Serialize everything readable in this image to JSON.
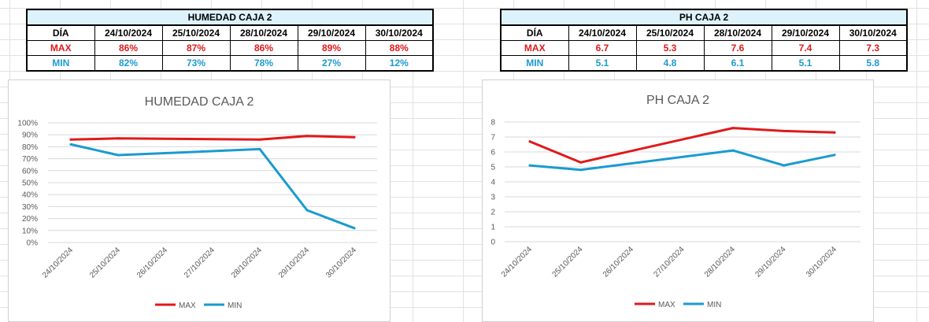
{
  "table1": {
    "title": "HUMEDAD CAJA 2",
    "header_label": "DÍA",
    "dates": [
      "24/10/2024",
      "25/10/2024",
      "28/10/2024",
      "29/10/2024",
      "30/10/2024"
    ],
    "max_label": "MAX",
    "min_label": "MIN",
    "max_values": [
      "86%",
      "87%",
      "86%",
      "89%",
      "88%"
    ],
    "min_values": [
      "82%",
      "73%",
      "78%",
      "27%",
      "12%"
    ]
  },
  "table2": {
    "title": "PH CAJA 2",
    "header_label": "DÍA",
    "dates": [
      "24/10/2024",
      "25/10/2024",
      "28/10/2024",
      "29/10/2024",
      "30/10/2024"
    ],
    "max_label": "MAX",
    "min_label": "MIN",
    "max_values": [
      "6.7",
      "5.3",
      "7.6",
      "7.4",
      "7.3"
    ],
    "min_values": [
      "5.1",
      "4.8",
      "6.1",
      "5.1",
      "5.8"
    ]
  },
  "colors": {
    "max": "#e0191b",
    "min": "#1b9ad0",
    "header_fill": "#ddf2fa"
  },
  "chart_data": [
    {
      "type": "line",
      "title": "HUMEDAD CAJA 2",
      "x_type": "date",
      "x": [
        "2024-10-24",
        "2024-10-25",
        "2024-10-28",
        "2024-10-29",
        "2024-10-30"
      ],
      "x_tick_labels": [
        "24/10/2024",
        "25/10/2024",
        "26/10/2024",
        "27/10/2024",
        "28/10/2024",
        "29/10/2024",
        "30/10/2024"
      ],
      "series": [
        {
          "name": "MAX",
          "values": [
            0.86,
            0.87,
            0.86,
            0.89,
            0.88
          ],
          "color": "#e0191b"
        },
        {
          "name": "MIN",
          "values": [
            0.82,
            0.73,
            0.78,
            0.27,
            0.12
          ],
          "color": "#1b9ad0"
        }
      ],
      "ylim": [
        0,
        1
      ],
      "y_ticks": [
        "0%",
        "10%",
        "20%",
        "30%",
        "40%",
        "50%",
        "60%",
        "70%",
        "80%",
        "90%",
        "100%"
      ],
      "grid": true,
      "legend": "bottom"
    },
    {
      "type": "line",
      "title": "PH CAJA 2",
      "x_type": "date",
      "x": [
        "2024-10-24",
        "2024-10-25",
        "2024-10-28",
        "2024-10-29",
        "2024-10-30"
      ],
      "x_tick_labels": [
        "24/10/2024",
        "25/10/2024",
        "26/10/2024",
        "27/10/2024",
        "28/10/2024",
        "29/10/2024",
        "30/10/2024"
      ],
      "series": [
        {
          "name": "MAX",
          "values": [
            6.7,
            5.3,
            7.6,
            7.4,
            7.3
          ],
          "color": "#e0191b"
        },
        {
          "name": "MIN",
          "values": [
            5.1,
            4.8,
            6.1,
            5.1,
            5.8
          ],
          "color": "#1b9ad0"
        }
      ],
      "ylim": [
        0,
        8
      ],
      "y_ticks": [
        "0",
        "1",
        "2",
        "3",
        "4",
        "5",
        "6",
        "7",
        "8"
      ],
      "grid": true,
      "legend": "bottom"
    }
  ]
}
